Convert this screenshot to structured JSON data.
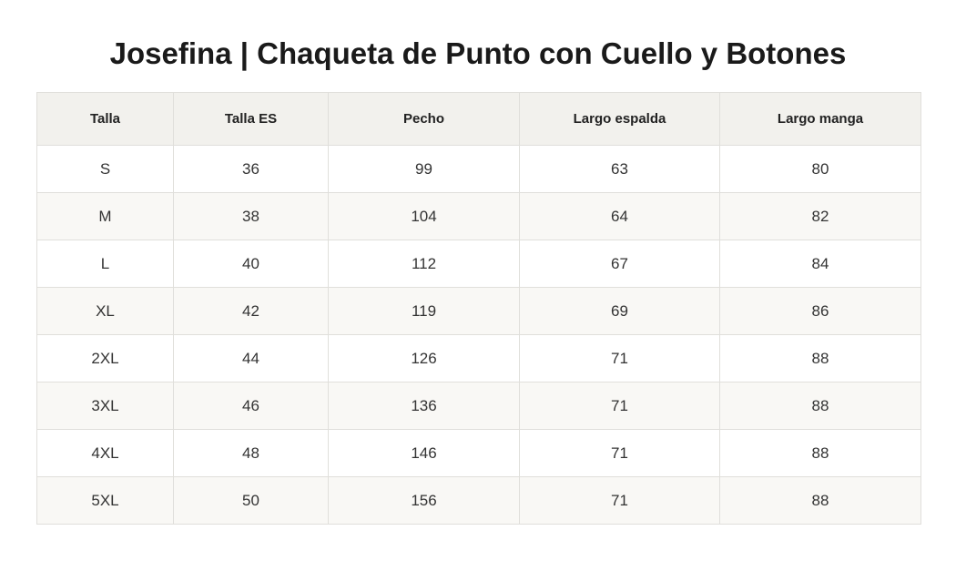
{
  "header": {
    "title": "Josefina | Chaqueta de Punto con Cuello y Botones"
  },
  "table": {
    "columns": [
      "Talla",
      "Talla ES",
      "Pecho",
      "Largo espalda",
      "Largo manga"
    ],
    "rows": [
      [
        "S",
        36,
        99,
        63,
        80
      ],
      [
        "M",
        38,
        104,
        64,
        82
      ],
      [
        "L",
        40,
        112,
        67,
        84
      ],
      [
        "XL",
        42,
        119,
        69,
        86
      ],
      [
        "2XL",
        44,
        126,
        71,
        88
      ],
      [
        "3XL",
        46,
        136,
        71,
        88
      ],
      [
        "4XL",
        48,
        146,
        71,
        88
      ],
      [
        "5XL",
        50,
        156,
        71,
        88
      ]
    ]
  }
}
